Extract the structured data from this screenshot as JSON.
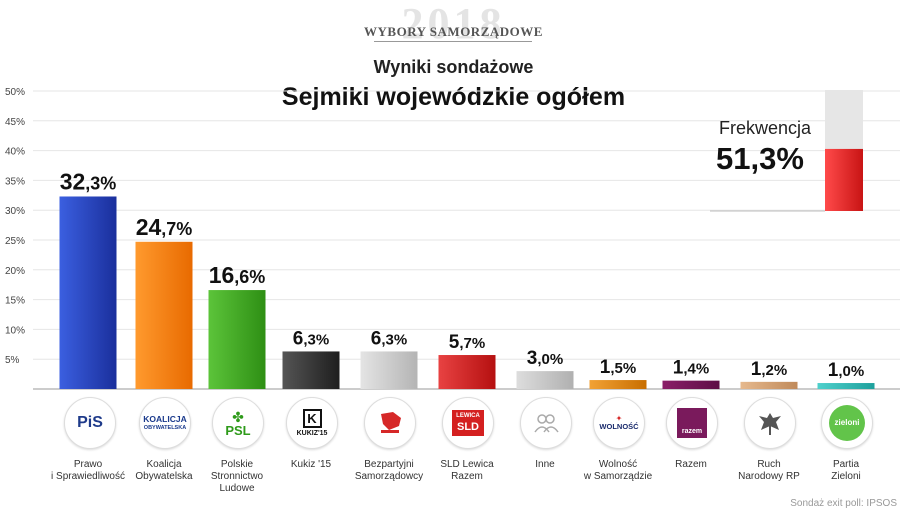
{
  "header": {
    "watermark": "2018",
    "brand": "WYBORY SAMORZĄDOWE",
    "subtitle": "Wyniki sondażowe",
    "title": "Sejmiki wojewódzkie ogółem"
  },
  "turnout": {
    "label": "Frekwencja",
    "value_text": "51,3%",
    "value": 51.3,
    "fill_color": "#e42222",
    "empty_color": "#e6e6e6"
  },
  "source": "Sondaż exit poll: IPSOS",
  "logos": {
    "pis": "PiS",
    "ko_top": "KOALICJA",
    "ko_bottom": "OBYWATELSKA",
    "psl": "PSL",
    "kukiz": "KUKIZ'15",
    "sld_top": "LEWICA",
    "sld_bottom": "SLD",
    "wolnosc": "WOLNOŚĆ",
    "razem": "razem",
    "zieloni": "zieloni"
  },
  "chart_data": {
    "type": "bar",
    "title": "Sejmiki wojewódzkie ogółem",
    "subtitle": "Wyniki sondażowe",
    "xlabel": "",
    "ylabel": "",
    "ylim": [
      0,
      50
    ],
    "yticks": [
      "5%",
      "10%",
      "15%",
      "20%",
      "25%",
      "30%",
      "35%",
      "40%",
      "45%",
      "50%"
    ],
    "grid": true,
    "categories": [
      {
        "lines": [
          "Prawo",
          "i Sprawiedliwość"
        ]
      },
      {
        "lines": [
          "Koalicja",
          "Obywatelska"
        ]
      },
      {
        "lines": [
          "Polskie",
          "Stronnictwo",
          "Ludowe"
        ]
      },
      {
        "lines": [
          "Kukiz '15"
        ]
      },
      {
        "lines": [
          "Bezpartyjni",
          "Samorządowcy"
        ]
      },
      {
        "lines": [
          "SLD Lewica",
          "Razem"
        ]
      },
      {
        "lines": [
          "Inne"
        ]
      },
      {
        "lines": [
          "Wolność",
          "w Samorządzie"
        ]
      },
      {
        "lines": [
          "Razem"
        ]
      },
      {
        "lines": [
          "Ruch",
          "Narodowy RP"
        ]
      },
      {
        "lines": [
          "Partia",
          "Zieloni"
        ]
      }
    ],
    "values": [
      32.3,
      24.7,
      16.6,
      6.3,
      6.3,
      5.7,
      3.0,
      1.5,
      1.4,
      1.2,
      1.0
    ],
    "value_labels": [
      {
        "int": "32",
        "dec": ",3%"
      },
      {
        "int": "24",
        "dec": ",7%"
      },
      {
        "int": "16",
        "dec": ",6%"
      },
      {
        "int": "6",
        "dec": ",3%"
      },
      {
        "int": "6",
        "dec": ",3%"
      },
      {
        "int": "5",
        "dec": ",7%"
      },
      {
        "int": "3",
        "dec": ",0%"
      },
      {
        "int": "1",
        "dec": ",5%"
      },
      {
        "int": "1",
        "dec": ",4%"
      },
      {
        "int": "1",
        "dec": ",2%"
      },
      {
        "int": "1",
        "dec": ",0%"
      }
    ],
    "colors": [
      [
        "#3b5fe0",
        "#1a2f9c"
      ],
      [
        "#ff9a2e",
        "#e86a00"
      ],
      [
        "#5cc43a",
        "#2e8f14"
      ],
      [
        "#555555",
        "#1e1e1e"
      ],
      [
        "#e4e4e4",
        "#b4b4b4"
      ],
      [
        "#e84242",
        "#b51010"
      ],
      [
        "#dddddd",
        "#b0b0b0"
      ],
      [
        "#f2a235",
        "#c86e00"
      ],
      [
        "#8a1f68",
        "#5e0f46"
      ],
      [
        "#e6b98e",
        "#c08a5a"
      ],
      [
        "#4fd0cc",
        "#1ea09c"
      ]
    ]
  }
}
